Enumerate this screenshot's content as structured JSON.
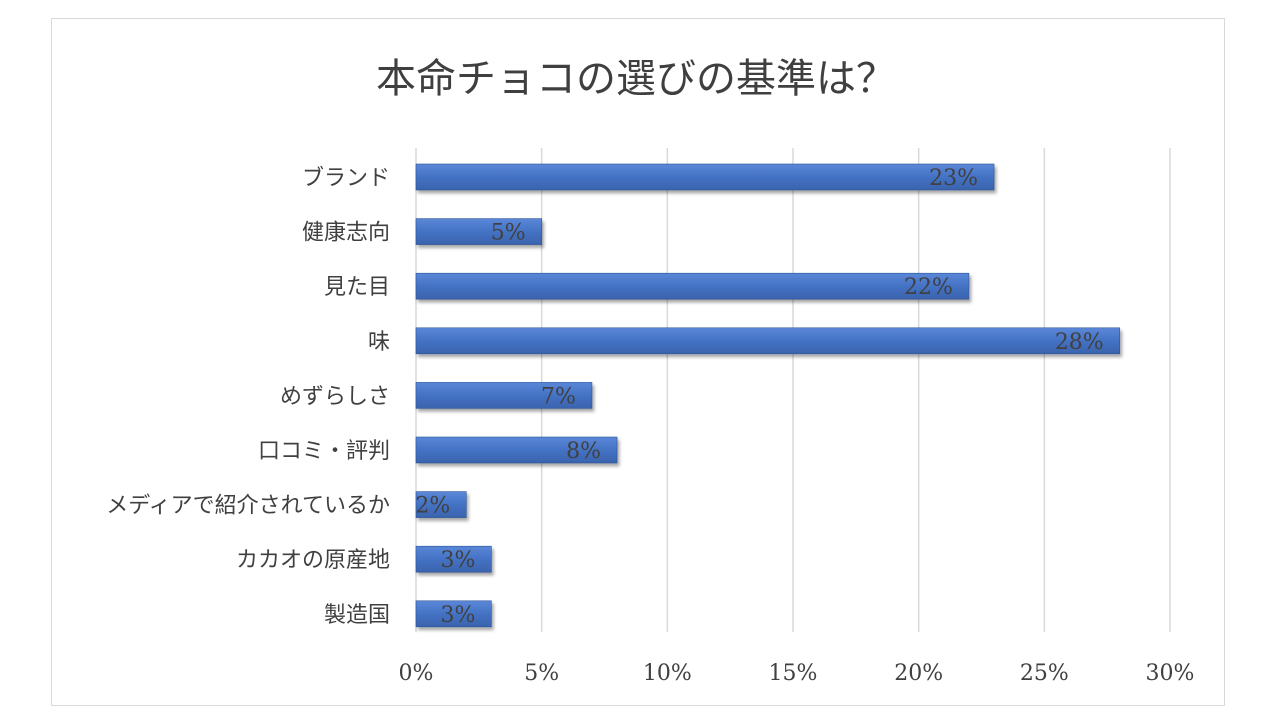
{
  "chart_data": {
    "type": "bar",
    "orientation": "horizontal",
    "title": "本命チョコの選びの基準は？",
    "categories": [
      "ブランド",
      "健康志向",
      "見た目",
      "味",
      "めずらしさ",
      "口コミ・評判",
      "メディアで紹介されているか",
      "カカオの原産地",
      "製造国"
    ],
    "values": [
      23,
      5,
      22,
      28,
      7,
      8,
      2,
      3,
      3
    ],
    "data_labels": [
      "23%",
      "5%",
      "22%",
      "28%",
      "7%",
      "8%",
      "2%",
      "3%",
      "3%"
    ],
    "x_ticks": [
      "0%",
      "5%",
      "10%",
      "15%",
      "20%",
      "25%",
      "30%"
    ],
    "xlim": [
      0,
      30
    ],
    "unit": "%",
    "grid": "vertical",
    "legend": "none",
    "colors": {
      "bar": "#4472c4",
      "bar_top": "#5a86d6",
      "bar_edge": "#2f5597",
      "text": "#404040",
      "grid": "#d9d9d9"
    }
  }
}
